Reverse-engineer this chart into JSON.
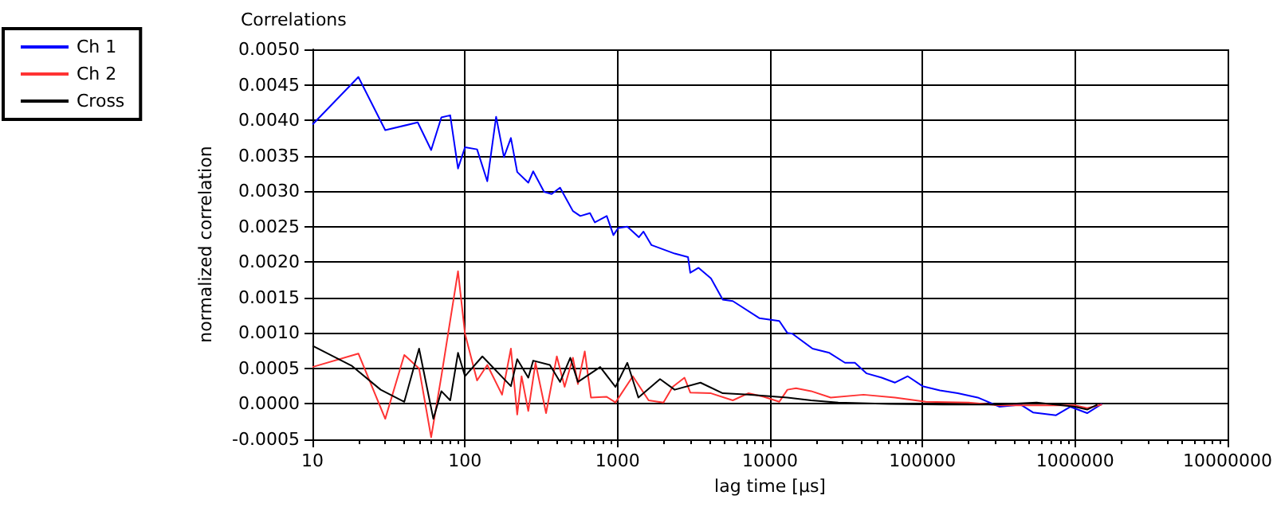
{
  "chart_data": {
    "type": "line",
    "title": "Correlations",
    "xlabel": "lag time [µs]",
    "ylabel": "normalized correlation",
    "log": "x",
    "grid": true,
    "legend": "top left",
    "marker": "none",
    "line_style": "solid",
    "xlim": [
      10,
      10000000
    ],
    "xticks": [
      10,
      100,
      1000,
      10000,
      100000,
      1000000,
      10000000
    ],
    "ylim": [
      -0.0005,
      0.005
    ],
    "yticks": [
      {
        "value": -0.0005,
        "label": "-0.0005"
      },
      {
        "value": 0,
        "label": "0.0000"
      },
      {
        "value": 0.0005,
        "label": "0.0005"
      },
      {
        "value": 0.001,
        "label": "0.0010"
      },
      {
        "value": 0.0015,
        "label": "0.0015"
      },
      {
        "value": 0.002,
        "label": "0.0020"
      },
      {
        "value": 0.0025,
        "label": "0.0025"
      },
      {
        "value": 0.003,
        "label": "0.0030"
      },
      {
        "value": 0.0035,
        "label": "0.0035"
      },
      {
        "value": 0.004,
        "label": "0.0040"
      },
      {
        "value": 0.0045,
        "label": "0.0045"
      },
      {
        "value": 0.005,
        "label": "0.0050"
      }
    ],
    "series": [
      {
        "name": "Ch 1",
        "color": "#0000ff",
        "x": [
          10,
          20,
          30,
          49,
          60,
          70,
          80,
          90,
          100,
          120,
          140,
          160,
          180,
          200,
          220,
          260,
          280,
          330,
          370,
          420,
          510,
          570,
          660,
          710,
          850,
          940,
          1010,
          1160,
          1380,
          1480,
          1670,
          2370,
          2900,
          3000,
          3400,
          4100,
          4900,
          5700,
          8500,
          11500,
          13000,
          14000,
          19000,
          24500,
          31000,
          36000,
          43000,
          54000,
          66000,
          80000,
          100000,
          130000,
          170000,
          230000,
          320000,
          440000,
          530000,
          750000,
          930000,
          1200000,
          1500000
        ],
        "values": [
          0.00394,
          0.00461,
          0.00386,
          0.00397,
          0.00358,
          0.00404,
          0.00407,
          0.00332,
          0.00362,
          0.00359,
          0.00314,
          0.00405,
          0.00348,
          0.00375,
          0.00327,
          0.00312,
          0.00328,
          0.00299,
          0.00296,
          0.00305,
          0.00272,
          0.00265,
          0.00269,
          0.00256,
          0.00265,
          0.00238,
          0.00248,
          0.0025,
          0.00235,
          0.00243,
          0.00224,
          0.00212,
          0.00207,
          0.00185,
          0.00192,
          0.00177,
          0.00147,
          0.00145,
          0.00121,
          0.00117,
          0.001,
          0.00099,
          0.00078,
          0.00072,
          0.00058,
          0.00058,
          0.00043,
          0.00037,
          0.0003,
          0.00039,
          0.00025,
          0.00019,
          0.00015,
          9e-05,
          -4e-05,
          -1e-05,
          -0.00012,
          -0.00016,
          -4e-05,
          -0.00013,
          0.0
        ]
      },
      {
        "name": "Ch 2",
        "color": "#ff3333",
        "x": [
          10,
          20,
          30,
          40,
          50,
          60,
          70,
          90,
          100,
          120,
          140,
          175,
          200,
          220,
          235,
          260,
          290,
          340,
          400,
          450,
          510,
          550,
          610,
          670,
          850,
          970,
          1260,
          1600,
          2000,
          2300,
          2750,
          3000,
          4100,
          5700,
          7200,
          9100,
          11500,
          13000,
          14800,
          18600,
          25000,
          41000,
          66000,
          105000,
          200000,
          320000,
          700000,
          1000000,
          1200000,
          1500000
        ],
        "values": [
          0.00052,
          0.00071,
          -0.00021,
          0.00069,
          0.0005,
          -0.00047,
          0.00039,
          0.00187,
          0.00099,
          0.00033,
          0.00055,
          0.00013,
          0.00078,
          -0.00015,
          0.00039,
          -0.0001,
          0.00058,
          -0.00013,
          0.00067,
          0.00024,
          0.00065,
          0.00028,
          0.00074,
          9e-05,
          0.0001,
          2e-05,
          0.00039,
          5e-05,
          2e-05,
          0.00024,
          0.00037,
          0.00016,
          0.00015,
          5e-05,
          0.00015,
          0.0001,
          3e-05,
          0.0002,
          0.00022,
          0.00018,
          9e-05,
          0.00013,
          9e-05,
          3e-05,
          2e-05,
          -2e-05,
          -2e-05,
          -2e-05,
          -6e-05,
          -1e-05
        ]
      },
      {
        "name": "Cross",
        "color": "#000000",
        "x": [
          10,
          18,
          28,
          40,
          50,
          62,
          70,
          80,
          90,
          100,
          130,
          200,
          220,
          260,
          280,
          360,
          420,
          490,
          550,
          770,
          970,
          1160,
          1370,
          1900,
          2370,
          3500,
          4900,
          7200,
          13000,
          18600,
          28000,
          61000,
          135000,
          300000,
          560000,
          1000000,
          1200000,
          1400000
        ],
        "values": [
          0.00082,
          0.00054,
          0.0002,
          3e-05,
          0.00078,
          -0.00021,
          0.00018,
          5e-05,
          0.00072,
          0.00039,
          0.00067,
          0.00025,
          0.00063,
          0.00037,
          0.00061,
          0.00055,
          0.00031,
          0.00065,
          0.00031,
          0.00052,
          0.00024,
          0.00058,
          9e-05,
          0.00035,
          0.0002,
          0.0003,
          0.00015,
          0.00013,
          9e-05,
          5e-05,
          2e-05,
          0.0,
          -1e-05,
          -1e-05,
          2e-05,
          -4e-05,
          -8e-05,
          -1e-05
        ]
      }
    ]
  }
}
